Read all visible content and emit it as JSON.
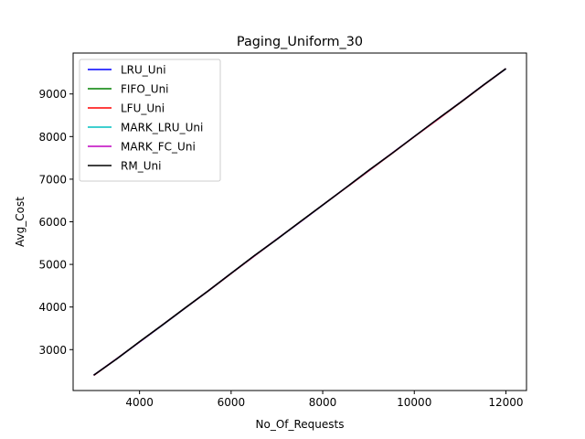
{
  "chart_data": {
    "type": "line",
    "title": "Paging_Uniform_30",
    "xlabel": "No_Of_Requests",
    "ylabel": "Avg_Cost",
    "xlim": [
      2550,
      12450
    ],
    "ylim": [
      2040,
      9960
    ],
    "xticks": [
      4000,
      6000,
      8000,
      10000,
      12000
    ],
    "yticks": [
      3000,
      4000,
      5000,
      6000,
      7000,
      8000,
      9000
    ],
    "grid": false,
    "legend_position": "upper-left",
    "x": [
      3000,
      3500,
      4000,
      4500,
      5000,
      5500,
      6000,
      6500,
      7000,
      7500,
      8000,
      8500,
      9000,
      9500,
      10000,
      10500,
      11000,
      11500,
      12000
    ],
    "series": [
      {
        "name": "LRU_Uni",
        "color": "#0000ff",
        "values": [
          2400,
          2780,
          3180,
          3575,
          3980,
          4375,
          4790,
          5195,
          5590,
          5990,
          6390,
          6795,
          7200,
          7595,
          8000,
          8400,
          8795,
          9200,
          9590
        ]
      },
      {
        "name": "FIFO_Uni",
        "color": "#008000",
        "values": [
          2400,
          2785,
          3185,
          3580,
          3985,
          4380,
          4790,
          5195,
          5595,
          5995,
          6395,
          6795,
          7200,
          7600,
          8000,
          8400,
          8800,
          9200,
          9595
        ]
      },
      {
        "name": "LFU_Uni",
        "color": "#ff0000",
        "values": [
          2395,
          2780,
          3180,
          3575,
          3980,
          4375,
          4785,
          5190,
          5590,
          5990,
          6390,
          6790,
          7190,
          7590,
          7995,
          8390,
          8790,
          9195,
          9590
        ]
      },
      {
        "name": "MARK_LRU_Uni",
        "color": "#00bfbf",
        "values": [
          2400,
          2780,
          3180,
          3575,
          3980,
          4375,
          4790,
          5195,
          5590,
          5990,
          6390,
          6795,
          7200,
          7595,
          8000,
          8400,
          8795,
          9200,
          9590
        ]
      },
      {
        "name": "MARK_FC_Uni",
        "color": "#bf00bf",
        "values": [
          2400,
          2785,
          3180,
          3580,
          3980,
          4380,
          4790,
          5195,
          5595,
          5990,
          6395,
          6795,
          7200,
          7600,
          8000,
          8400,
          8800,
          9200,
          9595
        ]
      },
      {
        "name": "RM_Uni",
        "color": "#000000",
        "values": [
          2400,
          2780,
          3185,
          3580,
          3980,
          4380,
          4790,
          5200,
          5590,
          5995,
          6395,
          6795,
          7205,
          7595,
          8000,
          8405,
          8795,
          9200,
          9595
        ]
      }
    ]
  }
}
